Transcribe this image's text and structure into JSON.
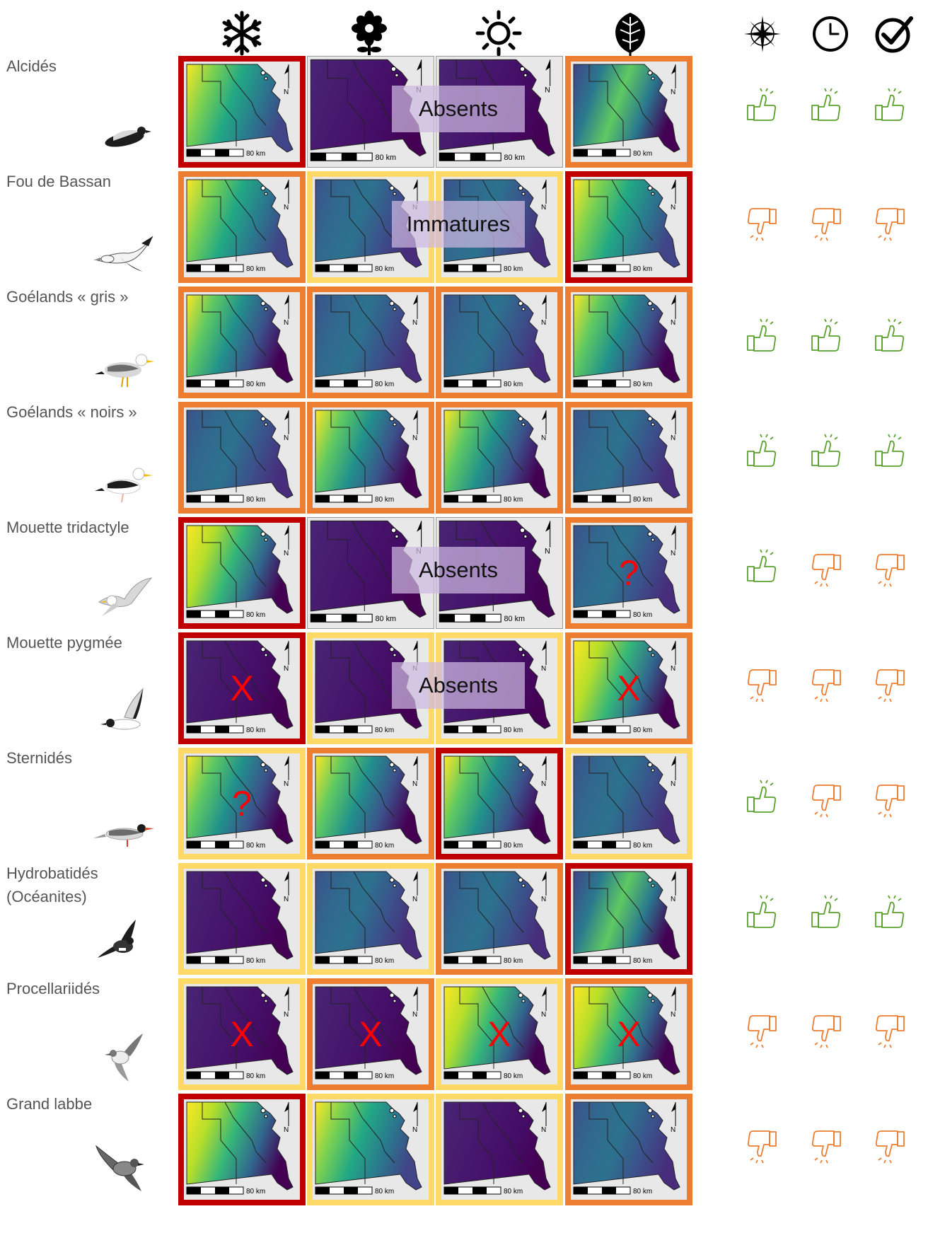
{
  "legend_colors": {
    "red": "#c00000",
    "orange": "#ed7d31",
    "yellow": "#ffd966",
    "none": "#ffffff",
    "thumb_up": "#5aa02c",
    "thumb_down": "#ed7d31"
  },
  "column_icons": [
    "snowflake-icon",
    "flower-icon",
    "sun-icon",
    "leaf-icon",
    "compass-rose-icon",
    "clock-icon",
    "checkmark-icon"
  ],
  "map_scale_label": "80 km",
  "north_label": "N",
  "species": [
    {
      "name": "Alcidés",
      "bird": "auk",
      "borders": [
        "red",
        "none",
        "none",
        "orange"
      ],
      "maps": [
        "a",
        "d",
        "d",
        "s"
      ],
      "marks": [
        "",
        "",
        "",
        ""
      ],
      "overlay": "Absents",
      "ratings": [
        "up",
        "up",
        "up"
      ]
    },
    {
      "name": "Fou de Bassan",
      "bird": "gannet",
      "borders": [
        "orange",
        "yellow",
        "yellow",
        "red"
      ],
      "maps": [
        "a",
        "m",
        "m",
        "a"
      ],
      "marks": [
        "",
        "",
        "",
        ""
      ],
      "overlay": "Immatures",
      "ratings": [
        "down",
        "down",
        "down"
      ]
    },
    {
      "name": "Goélands « gris »",
      "bird": "gull",
      "borders": [
        "orange",
        "orange",
        "orange",
        "orange"
      ],
      "maps": [
        "c",
        "m",
        "m",
        "c"
      ],
      "marks": [
        "",
        "",
        "",
        ""
      ],
      "overlay": "",
      "ratings": [
        "up",
        "up",
        "up"
      ]
    },
    {
      "name": "Goélands « noirs »",
      "bird": "gull-dark",
      "borders": [
        "orange",
        "orange",
        "orange",
        "orange"
      ],
      "maps": [
        "m",
        "c",
        "c",
        "m"
      ],
      "marks": [
        "",
        "",
        "",
        ""
      ],
      "overlay": "",
      "ratings": [
        "up",
        "up",
        "up"
      ]
    },
    {
      "name": "Mouette tridactyle",
      "bird": "kittiwake",
      "borders": [
        "red",
        "none",
        "none",
        "orange"
      ],
      "maps": [
        "w",
        "d",
        "d",
        "m"
      ],
      "marks": [
        "",
        "",
        "",
        "?"
      ],
      "overlay": "Absents",
      "ratings": [
        "up",
        "down",
        "down"
      ]
    },
    {
      "name": "Mouette pygmée",
      "bird": "little-gull",
      "borders": [
        "red",
        "yellow",
        "yellow",
        "orange"
      ],
      "maps": [
        "d",
        "d",
        "d",
        "w"
      ],
      "marks": [
        "X",
        "",
        "",
        "X"
      ],
      "overlay": "Absents",
      "ratings": [
        "down",
        "down",
        "down"
      ]
    },
    {
      "name": "Sternidés",
      "bird": "tern",
      "borders": [
        "yellow",
        "orange",
        "red",
        "yellow"
      ],
      "maps": [
        "c",
        "c",
        "c",
        "m"
      ],
      "marks": [
        "?",
        "",
        "",
        ""
      ],
      "overlay": "",
      "ratings": [
        "up",
        "down",
        "down"
      ]
    },
    {
      "name": "Hydrobatidés\n(Océanites)",
      "bird": "storm-petrel",
      "borders": [
        "yellow",
        "yellow",
        "orange",
        "red"
      ],
      "maps": [
        "d",
        "m",
        "m",
        "s"
      ],
      "marks": [
        "",
        "",
        "",
        ""
      ],
      "overlay": "",
      "ratings": [
        "up",
        "up",
        "up"
      ]
    },
    {
      "name": "Procellariidés",
      "bird": "shearwater",
      "borders": [
        "yellow",
        "orange",
        "yellow",
        "orange"
      ],
      "maps": [
        "d",
        "d",
        "w",
        "w"
      ],
      "marks": [
        "X",
        "X",
        "X",
        "X"
      ],
      "overlay": "",
      "ratings": [
        "down",
        "down",
        "down"
      ]
    },
    {
      "name": "Grand labbe",
      "bird": "skua",
      "borders": [
        "red",
        "yellow",
        "yellow",
        "orange"
      ],
      "maps": [
        "w",
        "a",
        "d",
        "m"
      ],
      "marks": [
        "",
        "",
        "",
        ""
      ],
      "overlay": "",
      "ratings": [
        "down",
        "down",
        "down"
      ]
    }
  ]
}
